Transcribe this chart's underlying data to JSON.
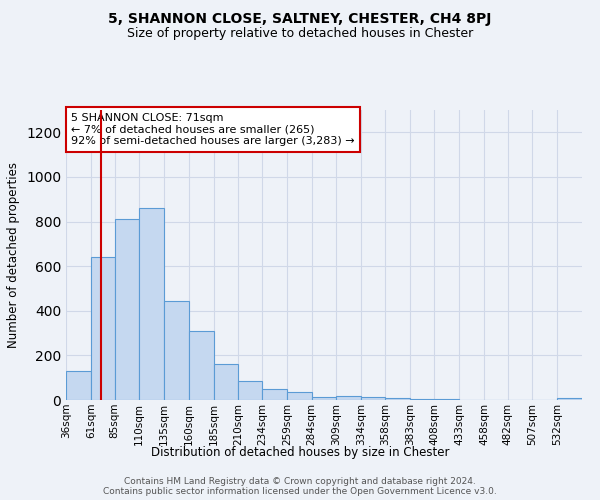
{
  "title": "5, SHANNON CLOSE, SALTNEY, CHESTER, CH4 8PJ",
  "subtitle": "Size of property relative to detached houses in Chester",
  "xlabel": "Distribution of detached houses by size in Chester",
  "ylabel": "Number of detached properties",
  "bin_labels": [
    "36sqm",
    "61sqm",
    "85sqm",
    "110sqm",
    "135sqm",
    "160sqm",
    "185sqm",
    "210sqm",
    "234sqm",
    "259sqm",
    "284sqm",
    "309sqm",
    "334sqm",
    "358sqm",
    "383sqm",
    "408sqm",
    "433sqm",
    "458sqm",
    "482sqm",
    "507sqm",
    "532sqm"
  ],
  "bar_values": [
    130,
    640,
    810,
    860,
    445,
    310,
    160,
    85,
    50,
    38,
    15,
    20,
    15,
    8,
    3,
    3,
    2,
    2,
    1,
    0,
    10
  ],
  "bar_color": "#c5d8f0",
  "bar_edge_color": "#5b9bd5",
  "ylim": [
    0,
    1300
  ],
  "yticks": [
    0,
    200,
    400,
    600,
    800,
    1000,
    1200
  ],
  "grid_color": "#d0d8e8",
  "bg_color": "#eef2f8",
  "vline_x": 71,
  "vline_color": "#cc0000",
  "annotation_title": "5 SHANNON CLOSE: 71sqm",
  "annotation_line1": "← 7% of detached houses are smaller (265)",
  "annotation_line2": "92% of semi-detached houses are larger (3,283) →",
  "annotation_box_color": "#cc0000",
  "footer_line1": "Contains HM Land Registry data © Crown copyright and database right 2024.",
  "footer_line2": "Contains public sector information licensed under the Open Government Licence v3.0.",
  "bin_edges": [
    36,
    61,
    85,
    110,
    135,
    160,
    185,
    210,
    234,
    259,
    284,
    309,
    334,
    358,
    383,
    408,
    433,
    458,
    482,
    507,
    532,
    557
  ]
}
